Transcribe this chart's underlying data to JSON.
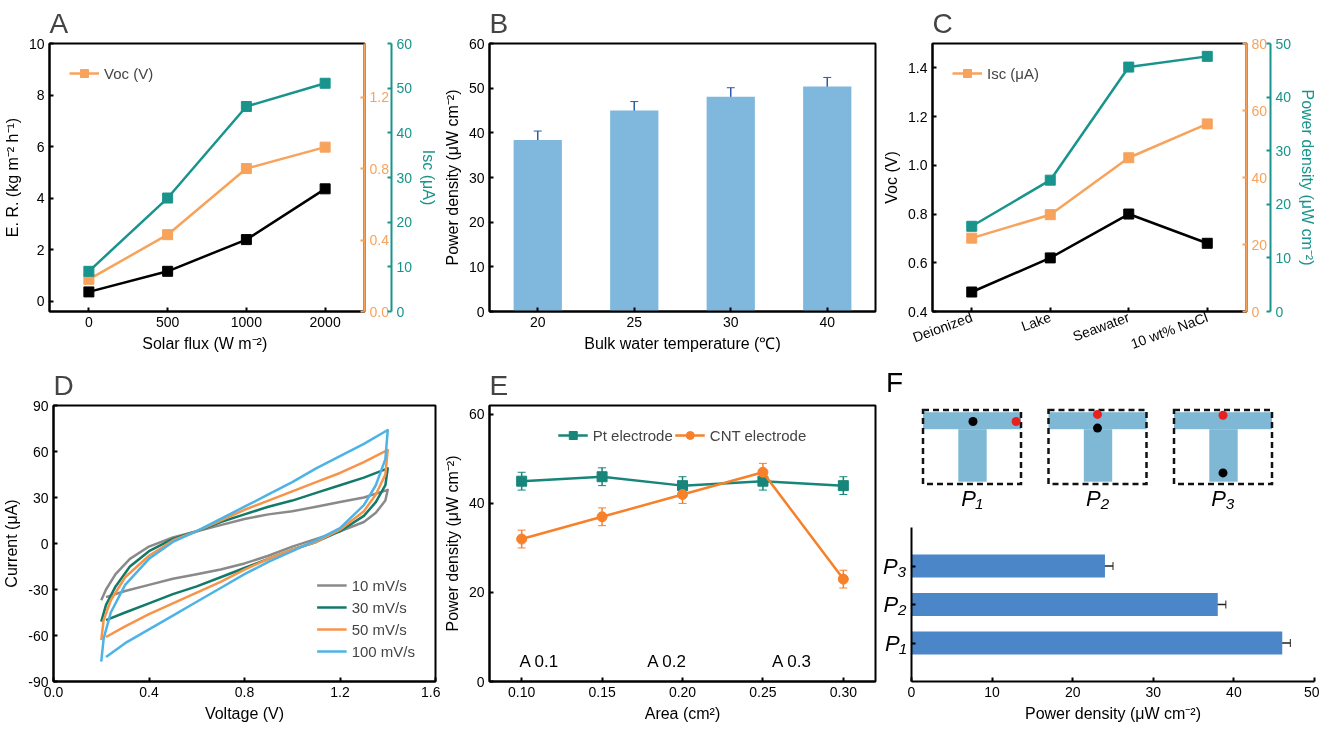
{
  "chart_data": [
    {
      "type": "line",
      "title": "A",
      "categories": [
        "0",
        "500",
        "1000",
        "2000"
      ],
      "xlabel": "Solar flux  (W m⁻²)",
      "ylabel": "E. R. (kg m⁻² h⁻¹)",
      "y3label": "Isc (μA)",
      "ylim": [
        -0.4,
        10
      ],
      "yticks": [
        0,
        2,
        4,
        6,
        8,
        10
      ],
      "y2lim": [
        0,
        1.5
      ],
      "y2ticks": [
        {
          "value": 0,
          "label": "0.0"
        },
        0.4,
        0.8,
        1.2
      ],
      "y3lim": [
        0,
        60
      ],
      "y3ticks": [
        0,
        10,
        20,
        30,
        40,
        50,
        60
      ],
      "marker": "square",
      "legend": "top left",
      "series": [
        {
          "color": "#000000",
          "values": [
            0.36,
            1.16,
            2.39,
            4.36
          ]
        },
        {
          "name": "Voc (V)",
          "color": "#f7a35c",
          "axis": "y2",
          "values": [
            0.18,
            0.43,
            0.8,
            0.92
          ]
        },
        {
          "color": "#18948c",
          "axis": "y3",
          "values": [
            9,
            25.4,
            45.9,
            51.1
          ]
        }
      ]
    },
    {
      "type": "bar",
      "title": "B",
      "categories": [
        "20",
        "25",
        "30",
        "40"
      ],
      "values": [
        38.4,
        45.0,
        48.1,
        50.4
      ],
      "errors": [
        2,
        2,
        2,
        2
      ],
      "color": "#7fb8dc",
      "xlabel": "Bulk water temperature (℃)",
      "ylabel": "Power density (μW cm⁻²)",
      "ylim": [
        0,
        60
      ],
      "yticks": [
        0,
        10,
        20,
        30,
        40,
        50,
        60
      ]
    },
    {
      "type": "line",
      "title": "C",
      "categories": [
        "Deionized",
        "Lake",
        "Seawater",
        "10 wt% NaCl"
      ],
      "ylabel": "Voc (V)",
      "y3label": "Power density (μW cm⁻²)",
      "ylim": [
        0.4,
        1.5
      ],
      "yticks": [
        0.4,
        0.6,
        0.8,
        {
          "value": 1.0,
          "label": "1.0"
        },
        1.2,
        1.4
      ],
      "y2lim": [
        0,
        80
      ],
      "y2ticks": [
        0,
        20,
        40,
        60,
        80
      ],
      "y3lim": [
        0,
        50
      ],
      "y3ticks": [
        0,
        10,
        20,
        30,
        40,
        50
      ],
      "marker": "square",
      "legend": "top left",
      "series": [
        {
          "color": "#000000",
          "values": [
            0.48,
            0.62,
            0.8,
            0.68
          ]
        },
        {
          "name": "Isc (μA)",
          "color": "#f7a35c",
          "axis": "y2",
          "values": [
            21.9,
            28.9,
            45.9,
            56.0
          ]
        },
        {
          "color": "#18948c",
          "axis": "y3",
          "values": [
            15.9,
            24.5,
            45.6,
            47.6
          ]
        }
      ]
    },
    {
      "type": "line",
      "title": "D",
      "xlabel": "Voltage (V)",
      "ylabel": "Current (μA)",
      "xlim": [
        0,
        1.6
      ],
      "xticks": [
        {
          "value": 0,
          "label": "0.0"
        },
        0.4,
        0.8,
        1.2,
        1.6
      ],
      "ylim": [
        -90,
        90
      ],
      "yticks": [
        -90,
        -60,
        -30,
        0,
        30,
        60,
        90
      ],
      "legend": "bottom right",
      "series": [
        {
          "name": "10 mV/s",
          "color": "#8a8a8a",
          "x": [
            0.2,
            0.22,
            0.26,
            0.32,
            0.4,
            0.5,
            0.6,
            0.7,
            0.8,
            0.9,
            1.0,
            1.1,
            1.2,
            1.3,
            1.4,
            1.39,
            1.35,
            1.3,
            1.2,
            1.1,
            1.0,
            0.9,
            0.8,
            0.7,
            0.6,
            0.5,
            0.4,
            0.3,
            0.22
          ],
          "values": [
            -37,
            -30,
            -20,
            -10,
            -2,
            4,
            8,
            12,
            16,
            19,
            21,
            24,
            27,
            30,
            35,
            28,
            20,
            14,
            8,
            3,
            -2,
            -8,
            -13,
            -17,
            -20,
            -23,
            -27,
            -31,
            -35
          ]
        },
        {
          "name": "30 mV/s",
          "color": "#137a6a",
          "x": [
            0.2,
            0.22,
            0.26,
            0.32,
            0.4,
            0.5,
            0.6,
            0.7,
            0.8,
            0.9,
            1.0,
            1.1,
            1.2,
            1.3,
            1.4,
            1.39,
            1.35,
            1.3,
            1.2,
            1.1,
            1.0,
            0.9,
            0.8,
            0.7,
            0.6,
            0.5,
            0.4,
            0.3,
            0.22
          ],
          "values": [
            -51,
            -40,
            -28,
            -15,
            -5,
            3,
            8,
            14,
            19,
            24,
            28,
            33,
            38,
            43,
            49,
            38,
            27,
            18,
            8,
            1,
            -4,
            -10,
            -16,
            -22,
            -28,
            -33,
            -39,
            -45,
            -50
          ]
        },
        {
          "name": "50 mV/s",
          "color": "#f7944a",
          "x": [
            0.2,
            0.21,
            0.24,
            0.3,
            0.4,
            0.5,
            0.6,
            0.7,
            0.8,
            0.9,
            1.0,
            1.1,
            1.2,
            1.3,
            1.4,
            1.39,
            1.35,
            1.3,
            1.2,
            1.1,
            1.0,
            0.9,
            0.8,
            0.7,
            0.6,
            0.5,
            0.4,
            0.3,
            0.22
          ],
          "values": [
            -63,
            -50,
            -37,
            -22,
            -8,
            2,
            8,
            15,
            22,
            28,
            34,
            40,
            46,
            53,
            61,
            45,
            32,
            21,
            9,
            1,
            -4,
            -10,
            -17,
            -25,
            -32,
            -39,
            -46,
            -54,
            -61
          ]
        },
        {
          "name": "100 mV/s",
          "color": "#4db3e6",
          "x": [
            0.2,
            0.21,
            0.24,
            0.3,
            0.4,
            0.5,
            0.6,
            0.7,
            0.8,
            0.9,
            1.0,
            1.1,
            1.2,
            1.3,
            1.4,
            1.39,
            1.35,
            1.3,
            1.2,
            1.1,
            1.0,
            0.9,
            0.8,
            0.7,
            0.6,
            0.5,
            0.4,
            0.3,
            0.22
          ],
          "values": [
            -77,
            -62,
            -45,
            -27,
            -10,
            1,
            8,
            16,
            24,
            32,
            40,
            49,
            57,
            65,
            74,
            55,
            38,
            25,
            10,
            2,
            -5,
            -12,
            -20,
            -29,
            -38,
            -47,
            -56,
            -65,
            -74
          ]
        }
      ]
    },
    {
      "type": "line",
      "title": "E",
      "xlabel": "Area (cm²)",
      "ylabel": "Power density (μW cm⁻²)",
      "x": [
        0.1,
        0.15,
        0.2,
        0.25,
        0.3
      ],
      "xlim": [
        0.08,
        0.32
      ],
      "xticks": [
        {
          "value": 0.1,
          "label": "0.10"
        },
        {
          "value": 0.15,
          "label": "0.15"
        },
        {
          "value": 0.2,
          "label": "0.20"
        },
        {
          "value": 0.25,
          "label": "0.25"
        },
        {
          "value": 0.3,
          "label": "0.30"
        }
      ],
      "ylim": [
        0,
        62
      ],
      "yticks": [
        0,
        20,
        40,
        60
      ],
      "legend": "top",
      "annotations": [
        "A 0.1",
        "A 0.2",
        "A 0.3"
      ],
      "series": [
        {
          "name": "Pt electrode",
          "color": "#18857a",
          "marker": "square",
          "values": [
            45,
            46,
            44,
            45,
            44
          ],
          "errors": [
            2,
            2,
            2,
            2,
            2
          ]
        },
        {
          "name": "CNT electrode",
          "color": "#f7802a",
          "marker": "circle",
          "values": [
            32,
            37,
            42,
            47,
            23
          ],
          "errors": [
            2,
            2,
            2,
            2,
            2
          ]
        }
      ]
    },
    {
      "type": "bar",
      "orientation": "horizontal",
      "title": "F",
      "categories": [
        "P₃",
        "P₂",
        "P₁"
      ],
      "values": [
        24,
        38,
        46
      ],
      "errors": [
        1,
        1,
        1
      ],
      "color": "#4a86c8",
      "xlim": [
        0,
        50
      ],
      "xticks": [
        0,
        10,
        20,
        30,
        40,
        50
      ],
      "xlabel": "Power density (μW cm⁻²)",
      "annotations": [
        "P₁",
        "P₂",
        "P₃"
      ]
    }
  ]
}
